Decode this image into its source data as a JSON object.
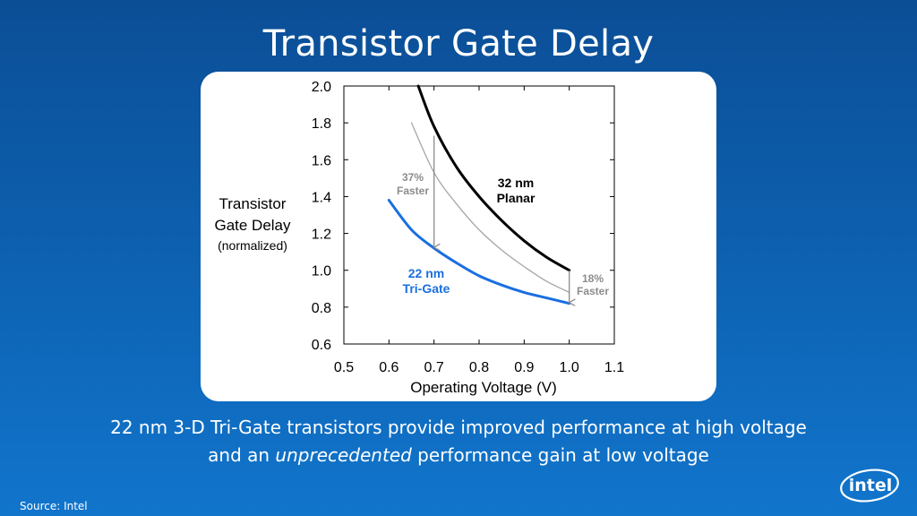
{
  "title": "Transistor Gate Delay",
  "caption": {
    "line1": "22 nm 3-D Tri-Gate transistors provide improved performance at high voltage",
    "line2_pre": "and an ",
    "line2_em": "unprecedented",
    "line2_post": " performance gain at low voltage"
  },
  "source": "Source: Intel",
  "logo_text": "intel",
  "colors": {
    "background": "#0d5fae",
    "planar": "#000000",
    "trigate": "#1a6fe0",
    "reference": "#a6a6a6",
    "annotation": "#8c8c8c"
  },
  "chart_data": {
    "type": "line",
    "xlabel": "Operating Voltage (V)",
    "ylabel": {
      "line1": "Transistor",
      "line2": "Gate Delay",
      "line3": "(normalized)"
    },
    "xlim": [
      0.5,
      1.1
    ],
    "ylim": [
      0.6,
      2.0
    ],
    "xticks": [
      "0.5",
      "0.6",
      "0.7",
      "0.8",
      "0.9",
      "1.0",
      "1.1"
    ],
    "yticks": [
      "0.6",
      "0.8",
      "1.0",
      "1.2",
      "1.4",
      "1.6",
      "1.8",
      "2.0"
    ],
    "series": [
      {
        "name": "32 nm Planar",
        "label_line1": "32 nm",
        "label_line2": "Planar",
        "x": [
          0.665,
          0.7,
          0.75,
          0.8,
          0.85,
          0.9,
          0.95,
          1.0
        ],
        "y": [
          2.0,
          1.78,
          1.56,
          1.4,
          1.27,
          1.16,
          1.07,
          1.0
        ]
      },
      {
        "name": "22 nm Tri-Gate",
        "label_line1": "22 nm",
        "label_line2": "Tri-Gate",
        "x": [
          0.6,
          0.65,
          0.7,
          0.75,
          0.8,
          0.85,
          0.9,
          0.95,
          1.0
        ],
        "y": [
          1.38,
          1.22,
          1.12,
          1.04,
          0.97,
          0.92,
          0.88,
          0.85,
          0.82
        ]
      },
      {
        "name": "",
        "x": [
          0.65,
          0.7,
          0.75,
          0.8,
          0.85,
          0.9,
          0.95,
          1.0
        ],
        "y": [
          1.8,
          1.53,
          1.36,
          1.22,
          1.11,
          1.02,
          0.94,
          0.88
        ]
      }
    ],
    "annotations": [
      {
        "line1": "37%",
        "line2": "Faster",
        "x": 0.7,
        "y_from": 1.73,
        "y_to": 1.12
      },
      {
        "line1": "18%",
        "line2": "Faster",
        "x": 1.0,
        "y_from": 1.0,
        "y_to": 0.82
      }
    ]
  }
}
